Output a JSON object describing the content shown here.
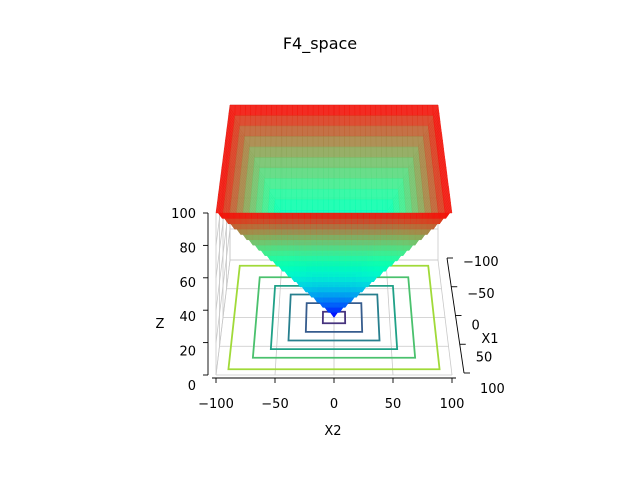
{
  "chart_data": {
    "type": "surface3d",
    "title": "F4_space",
    "function": "max(|x1|, |x2|)",
    "xlabel": "X2",
    "ylabel": "X1",
    "zlabel": "Z",
    "x_range": [
      -100,
      100
    ],
    "y_range": [
      -100,
      100
    ],
    "z_range": [
      0,
      100
    ],
    "x_ticks": [
      "−100",
      "−50",
      "0",
      "50",
      "100"
    ],
    "y_ticks": [
      "−100",
      "−50",
      "0",
      "50",
      "100"
    ],
    "z_ticks": [
      "0",
      "20",
      "40",
      "60",
      "80",
      "100"
    ],
    "surface_colormap": "rainbow",
    "contour_colormap": "viridis",
    "contour_levels": [
      {
        "level": 10,
        "color": "#46337e"
      },
      {
        "level": 25,
        "color": "#365c8d"
      },
      {
        "level": 40,
        "color": "#277f8e"
      },
      {
        "level": 55,
        "color": "#1fa187"
      },
      {
        "level": 70,
        "color": "#4ac16d"
      },
      {
        "level": 90,
        "color": "#a0da39"
      }
    ],
    "grid": true
  }
}
